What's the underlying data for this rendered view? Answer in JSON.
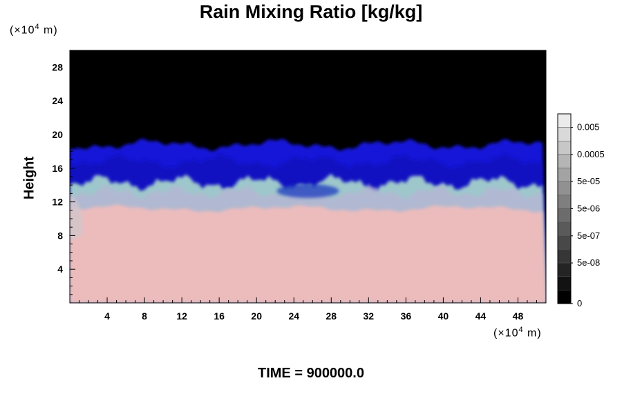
{
  "chart_data": {
    "type": "heatmap",
    "title": "Rain Mixing Ratio [kg/kg]",
    "ylabel": "Height",
    "y_unit_prefix": "(×10",
    "y_unit_exp": "4",
    "y_unit_suffix": " m)",
    "x_unit_prefix": "(×10",
    "x_unit_exp": "4",
    "x_unit_suffix": " m)",
    "xlim": [
      0,
      51
    ],
    "ylim": [
      0,
      30
    ],
    "x_ticks": [
      "4",
      "8",
      "12",
      "16",
      "20",
      "24",
      "28",
      "32",
      "36",
      "40",
      "44",
      "48"
    ],
    "x_tick_values": [
      4,
      8,
      12,
      16,
      20,
      24,
      28,
      32,
      36,
      40,
      44,
      48
    ],
    "y_ticks": [
      "4",
      "8",
      "12",
      "16",
      "20",
      "24",
      "28"
    ],
    "y_tick_values": [
      4,
      8,
      12,
      16,
      20,
      24,
      28
    ],
    "colorbar_labels": [
      "0.005",
      "0.0005",
      "5e-05",
      "5e-06",
      "5e-07",
      "5e-08",
      "0"
    ],
    "colorbar_levels": 14,
    "layers": [
      {
        "region": "lower (0 to ~11)",
        "color": "#ecbcbc"
      },
      {
        "region": "mixed (~11 to ~15)",
        "color": "#9ec7cc"
      },
      {
        "region": "upper (~15 to ~19)",
        "color": "#1414d8"
      },
      {
        "region": "top (~19 to 30)",
        "color": "#000000"
      }
    ],
    "time_label": "TIME = 900000.0"
  }
}
